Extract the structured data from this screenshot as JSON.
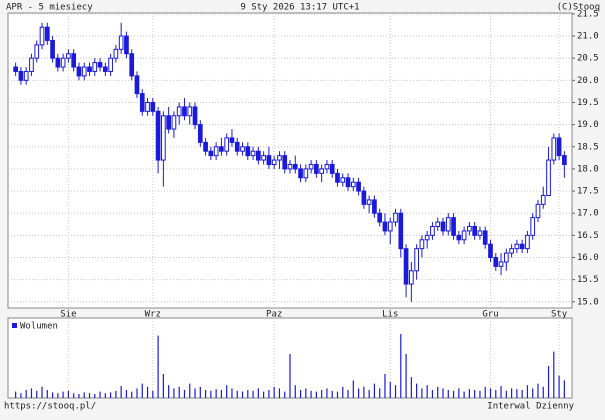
{
  "chart_data": {
    "type": "candlestick",
    "title": "APR - 5 miesiecy",
    "subtitle": "9 Sty 2026 13:17 UTC+1",
    "source": "(C)Stooq",
    "footer_left": "https://stooq.pl/",
    "footer_right": "Interwal Dzienny",
    "color": "#1a1ad8",
    "categories": [
      null,
      null,
      null,
      null,
      null,
      null,
      null,
      null,
      null,
      null,
      "Sie",
      null,
      null,
      null,
      null,
      null,
      null,
      null,
      null,
      null,
      null,
      null,
      null,
      null,
      null,
      null,
      "Wrz",
      null,
      null,
      null,
      null,
      null,
      null,
      null,
      null,
      null,
      null,
      null,
      null,
      null,
      null,
      null,
      null,
      null,
      null,
      null,
      null,
      null,
      null,
      "Paz",
      null,
      null,
      null,
      null,
      null,
      null,
      null,
      null,
      null,
      null,
      null,
      null,
      null,
      null,
      null,
      null,
      null,
      null,
      null,
      null,
      null,
      "Lis",
      null,
      null,
      null,
      null,
      null,
      null,
      null,
      null,
      null,
      null,
      null,
      null,
      null,
      null,
      null,
      null,
      null,
      null,
      "Gru",
      null,
      null,
      null,
      null,
      null,
      null,
      null,
      null,
      null,
      null,
      null,
      null,
      "Sty",
      null
    ],
    "open": [
      20.3,
      20.2,
      20.0,
      20.2,
      20.5,
      20.8,
      21.2,
      20.9,
      20.5,
      20.3,
      20.5,
      20.6,
      20.3,
      20.1,
      20.3,
      20.2,
      20.4,
      20.3,
      20.2,
      20.5,
      20.7,
      21.0,
      20.6,
      20.1,
      19.7,
      19.3,
      19.5,
      19.3,
      18.2,
      19.2,
      18.9,
      19.2,
      19.4,
      19.2,
      19.4,
      19.0,
      18.6,
      18.4,
      18.3,
      18.5,
      18.4,
      18.7,
      18.6,
      18.4,
      18.5,
      18.3,
      18.4,
      18.2,
      18.3,
      18.1,
      18.2,
      18.3,
      18.0,
      18.1,
      18.0,
      17.8,
      18.0,
      18.1,
      17.9,
      18.0,
      18.1,
      17.9,
      17.7,
      17.8,
      17.6,
      17.7,
      17.5,
      17.2,
      17.3,
      17.0,
      16.8,
      16.6,
      16.8,
      17.0,
      16.2,
      15.4,
      15.7,
      16.2,
      16.4,
      16.5,
      16.7,
      16.8,
      16.6,
      16.9,
      16.5,
      16.4,
      16.6,
      16.7,
      16.5,
      16.6,
      16.3,
      16.0,
      15.8,
      15.9,
      16.1,
      16.2,
      16.3,
      16.2,
      16.5,
      16.9,
      17.2,
      17.4,
      18.2,
      18.7,
      18.3
    ],
    "high": [
      20.4,
      20.3,
      20.3,
      20.6,
      20.9,
      21.3,
      21.3,
      21.0,
      20.6,
      20.6,
      20.7,
      20.7,
      20.4,
      20.4,
      20.4,
      20.5,
      20.5,
      20.4,
      20.6,
      20.8,
      21.3,
      21.1,
      20.7,
      20.2,
      19.8,
      19.6,
      19.6,
      19.4,
      19.3,
      19.4,
      19.3,
      19.5,
      19.6,
      19.5,
      19.5,
      19.1,
      18.7,
      18.5,
      18.6,
      18.7,
      18.8,
      18.9,
      18.7,
      18.6,
      18.6,
      18.5,
      18.5,
      18.4,
      18.5,
      18.3,
      18.4,
      18.4,
      18.2,
      18.3,
      18.1,
      18.1,
      18.2,
      18.2,
      18.1,
      18.2,
      18.2,
      18.0,
      17.9,
      17.9,
      17.8,
      17.8,
      17.6,
      17.4,
      17.4,
      17.1,
      17.0,
      16.9,
      17.1,
      17.1,
      16.3,
      15.9,
      16.3,
      16.5,
      16.6,
      16.8,
      16.9,
      16.9,
      17.0,
      17.0,
      16.6,
      16.7,
      16.8,
      16.8,
      16.7,
      16.7,
      16.4,
      16.1,
      16.1,
      16.2,
      16.3,
      16.4,
      16.4,
      16.6,
      17.0,
      17.3,
      17.6,
      18.5,
      18.8,
      18.8,
      18.4
    ],
    "low": [
      20.1,
      19.9,
      19.9,
      20.1,
      20.4,
      20.7,
      20.8,
      20.4,
      20.2,
      20.2,
      20.4,
      20.2,
      20.0,
      20.0,
      20.1,
      20.1,
      20.2,
      20.1,
      20.1,
      20.4,
      20.6,
      20.5,
      20.0,
      19.6,
      19.2,
      19.2,
      19.2,
      17.9,
      17.6,
      18.8,
      18.7,
      19.0,
      19.1,
      19.0,
      18.9,
      18.5,
      18.3,
      18.2,
      18.2,
      18.3,
      18.3,
      18.5,
      18.3,
      18.3,
      18.2,
      18.2,
      18.1,
      18.1,
      18.0,
      18.0,
      18.0,
      17.9,
      17.9,
      17.9,
      17.7,
      17.7,
      17.9,
      17.8,
      17.7,
      17.9,
      17.8,
      17.6,
      17.6,
      17.5,
      17.5,
      17.4,
      17.1,
      17.0,
      16.9,
      16.7,
      16.5,
      16.3,
      16.7,
      16.0,
      15.1,
      15.0,
      15.5,
      16.0,
      16.2,
      16.4,
      16.6,
      16.5,
      16.5,
      16.4,
      16.3,
      16.3,
      16.5,
      16.4,
      16.4,
      16.2,
      15.9,
      15.7,
      15.6,
      15.7,
      16.0,
      16.1,
      16.1,
      16.1,
      16.4,
      16.8,
      17.1,
      17.4,
      18.1,
      18.2,
      17.8
    ],
    "close": [
      20.2,
      20.0,
      20.2,
      20.5,
      20.8,
      21.2,
      20.9,
      20.5,
      20.3,
      20.5,
      20.6,
      20.3,
      20.1,
      20.3,
      20.2,
      20.4,
      20.3,
      20.2,
      20.5,
      20.7,
      21.0,
      20.6,
      20.1,
      19.7,
      19.3,
      19.5,
      19.3,
      18.2,
      19.2,
      18.9,
      19.2,
      19.4,
      19.2,
      19.4,
      19.0,
      18.6,
      18.4,
      18.3,
      18.5,
      18.4,
      18.7,
      18.6,
      18.4,
      18.5,
      18.3,
      18.4,
      18.2,
      18.3,
      18.1,
      18.2,
      18.3,
      18.0,
      18.1,
      18.0,
      17.8,
      18.0,
      18.1,
      17.9,
      18.0,
      18.1,
      17.9,
      17.7,
      17.8,
      17.6,
      17.7,
      17.5,
      17.2,
      17.3,
      17.0,
      16.8,
      16.6,
      16.8,
      17.0,
      16.2,
      15.4,
      15.7,
      16.2,
      16.4,
      16.5,
      16.7,
      16.8,
      16.6,
      16.9,
      16.5,
      16.4,
      16.6,
      16.7,
      16.5,
      16.6,
      16.3,
      16.0,
      15.8,
      15.9,
      16.1,
      16.2,
      16.3,
      16.2,
      16.5,
      16.9,
      17.2,
      17.4,
      18.2,
      18.7,
      18.3,
      18.1
    ],
    "ylim": [
      14.86,
      21.52
    ],
    "yticks": [
      {
        "value": 15,
        "label": "15.0"
      },
      {
        "value": 15.5,
        "label": "15.5"
      },
      {
        "value": 16,
        "label": "16.0"
      },
      {
        "value": 16.5,
        "label": "16.5"
      },
      {
        "value": 17,
        "label": "17.0"
      },
      {
        "value": 17.5,
        "label": "17.5"
      },
      {
        "value": 18,
        "label": "18.0"
      },
      {
        "value": 18.5,
        "label": "18.5"
      },
      {
        "value": 19,
        "label": "19.0"
      },
      {
        "value": 19.5,
        "label": "19.5"
      },
      {
        "value": 20,
        "label": "20.0"
      },
      {
        "value": 20.5,
        "label": "20.5"
      },
      {
        "value": 21,
        "label": "21.0"
      },
      {
        "value": 21.5,
        "label": "21.5"
      }
    ],
    "grid": true,
    "volume": {
      "name": "Wolumen",
      "ylim": [
        0,
        100
      ],
      "values": [
        8,
        6,
        10,
        12,
        9,
        14,
        10,
        7,
        6,
        8,
        9,
        6,
        5,
        7,
        6,
        5,
        8,
        6,
        7,
        9,
        15,
        10,
        8,
        12,
        18,
        14,
        9,
        78,
        30,
        16,
        12,
        14,
        10,
        18,
        12,
        14,
        10,
        9,
        11,
        10,
        16,
        12,
        9,
        8,
        10,
        9,
        12,
        8,
        10,
        14,
        12,
        8,
        55,
        16,
        10,
        12,
        9,
        8,
        10,
        12,
        9,
        8,
        14,
        10,
        22,
        12,
        14,
        10,
        18,
        12,
        30,
        20,
        16,
        80,
        55,
        26,
        18,
        12,
        16,
        10,
        14,
        12,
        10,
        9,
        12,
        8,
        11,
        10,
        9,
        14,
        12,
        10,
        15,
        9,
        12,
        11,
        10,
        16,
        12,
        18,
        14,
        40,
        58,
        28,
        22
      ]
    }
  }
}
